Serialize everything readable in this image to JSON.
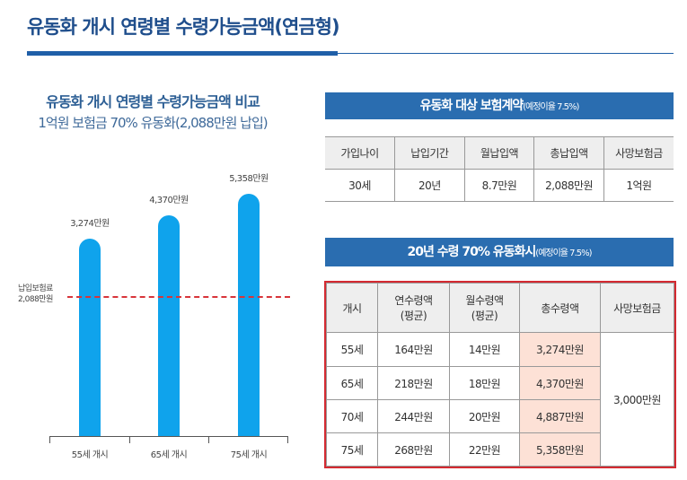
{
  "title": "유동화 개시 연령별 수령가능금액(연금형)",
  "chart_data": {
    "type": "bar",
    "title": "유동화 개시 연령별 수령가능금액 비교",
    "subtitle": "1억원 보험금 70% 유동화(2,088만원 납입)",
    "categories": [
      "55세 개시",
      "65세 개시",
      "75세 개시"
    ],
    "values": [
      3274,
      4370,
      5358
    ],
    "value_labels": [
      "3,274만원",
      "4,370만원",
      "5,358만원"
    ],
    "unit": "만원",
    "reference_line": {
      "value": 2088,
      "label_line1": "납입보험료",
      "label_line2": "2,088만원",
      "color": "#d8343a"
    },
    "bar_color": "#0fa3ec"
  },
  "table1": {
    "title": "유동화 대상 보험계약",
    "title_note": "(예정이율 7.5%)",
    "headers": [
      "가입나이",
      "납입기간",
      "월납입액",
      "총납입액",
      "사망보험금"
    ],
    "row": [
      "30세",
      "20년",
      "8.7만원",
      "2,088만원",
      "1억원"
    ]
  },
  "table2": {
    "title": "20년 수령 70% 유동화시",
    "title_note": "(예정이율 7.5%)",
    "headers": [
      "개시",
      "연수령액",
      "(평균)",
      "월수령액",
      "(평균)",
      "총수령액",
      "사망보험금"
    ],
    "rows": [
      [
        "55세",
        "164만원",
        "14만원",
        "3,274만원"
      ],
      [
        "65세",
        "218만원",
        "18만원",
        "4,370만원"
      ],
      [
        "70세",
        "244만원",
        "20만원",
        "4,887만원"
      ],
      [
        "75세",
        "268만원",
        "22만원",
        "5,358만원"
      ]
    ],
    "death_benefit": "3,000만원"
  }
}
